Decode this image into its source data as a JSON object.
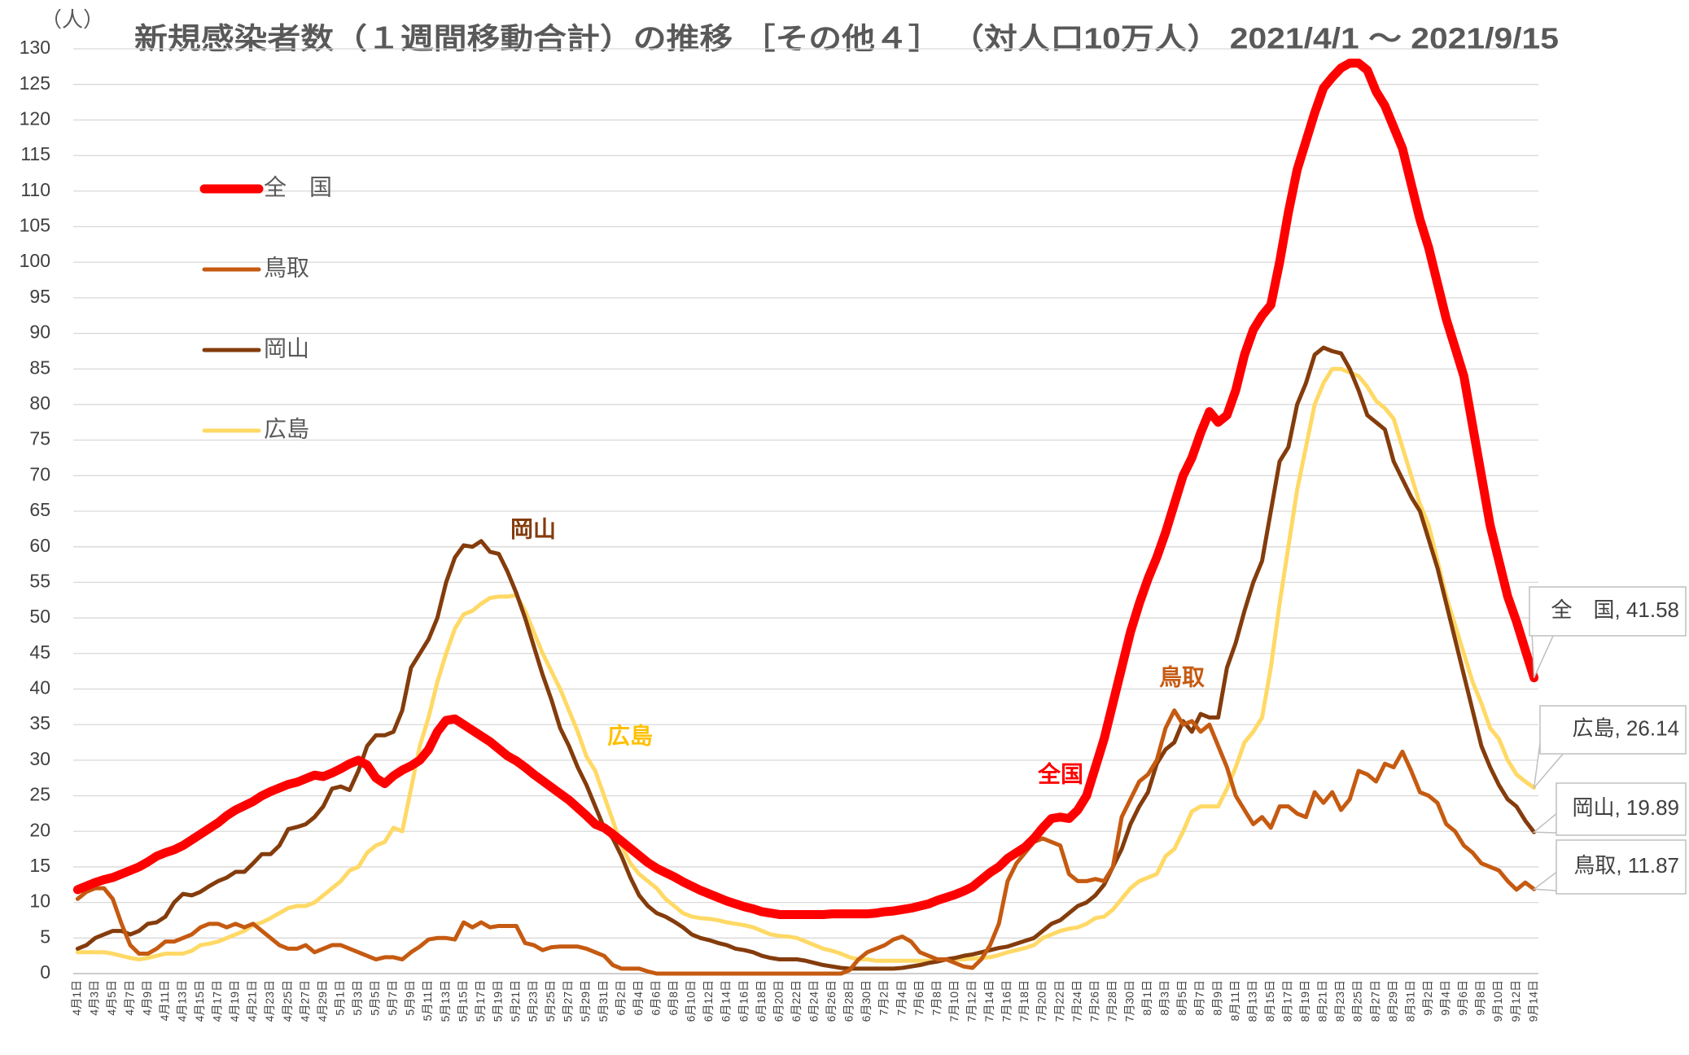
{
  "chart_data": {
    "type": "line",
    "title": "新規感染者数（１週間移動合計）の推移 ［その他４］ （対人口10万人） 2021/4/1 ～ 2021/9/15",
    "ylabel": "（人）",
    "ylim": [
      0,
      130
    ],
    "yticks": [
      0,
      5,
      10,
      15,
      20,
      25,
      30,
      35,
      40,
      45,
      50,
      55,
      60,
      65,
      70,
      75,
      80,
      85,
      90,
      95,
      100,
      105,
      110,
      115,
      120,
      125,
      130
    ],
    "grid": true,
    "categories": [
      "4月1日",
      null,
      "4月3日",
      null,
      "4月5日",
      null,
      "4月7日",
      null,
      "4月9日",
      null,
      "4月11日",
      null,
      "4月13日",
      null,
      "4月15日",
      null,
      "4月17日",
      null,
      "4月19日",
      null,
      "4月21日",
      null,
      "4月23日",
      null,
      "4月25日",
      null,
      "4月27日",
      null,
      "4月29日",
      null,
      "5月1日",
      null,
      "5月3日",
      null,
      "5月5日",
      null,
      "5月7日",
      null,
      "5月9日",
      null,
      "5月11日",
      null,
      "5月13日",
      null,
      "5月15日",
      null,
      "5月17日",
      null,
      "5月19日",
      null,
      "5月21日",
      null,
      "5月23日",
      null,
      "5月25日",
      null,
      "5月27日",
      null,
      "5月29日",
      null,
      "5月31日",
      null,
      "6月2日",
      null,
      "6月4日",
      null,
      "6月6日",
      null,
      "6月8日",
      null,
      "6月10日",
      null,
      "6月12日",
      null,
      "6月14日",
      null,
      "6月16日",
      null,
      "6月18日",
      null,
      "6月20日",
      null,
      "6月22日",
      null,
      "6月24日",
      null,
      "6月26日",
      null,
      "6月28日",
      null,
      "6月30日",
      null,
      "7月2日",
      null,
      "7月4日",
      null,
      "7月6日",
      null,
      "7月8日",
      null,
      "7月10日",
      null,
      "7月12日",
      null,
      "7月14日",
      null,
      "7月16日",
      null,
      "7月18日",
      null,
      "7月20日",
      null,
      "7月22日",
      null,
      "7月24日",
      null,
      "7月26日",
      null,
      "7月28日",
      null,
      "7月30日",
      null,
      "8月1日",
      null,
      "8月3日",
      null,
      "8月5日",
      null,
      "8月7日",
      null,
      "8月9日",
      null,
      "8月11日",
      null,
      "8月13日",
      null,
      "8月15日",
      null,
      "8月17日",
      null,
      "8月19日",
      null,
      "8月21日",
      null,
      "8月23日",
      null,
      "8月25日",
      null,
      "8月27日",
      null,
      "8月29日",
      null,
      "8月31日",
      null,
      "9月2日",
      null,
      "9月4日",
      null,
      "9月6日",
      null,
      "9月8日",
      null,
      "9月10日",
      null,
      "9月12日",
      null,
      "9月14日"
    ],
    "series": [
      {
        "name": "全　国",
        "color": "#ff0000",
        "width": 11,
        "end_label": "全　国, 41.58",
        "values": [
          11.8,
          12.3,
          12.8,
          13.2,
          13.5,
          14.0,
          14.5,
          15.0,
          15.7,
          16.5,
          17.0,
          17.4,
          18.0,
          18.8,
          19.6,
          20.4,
          21.2,
          22.2,
          23.0,
          23.6,
          24.2,
          25.0,
          25.6,
          26.1,
          26.6,
          26.9,
          27.4,
          27.9,
          27.7,
          28.2,
          28.8,
          29.5,
          30.0,
          29.3,
          27.5,
          26.7,
          27.8,
          28.6,
          29.2,
          30.0,
          31.5,
          34.0,
          35.6,
          35.8,
          35.0,
          34.2,
          33.4,
          32.6,
          31.6,
          30.6,
          29.9,
          29.0,
          28.0,
          27.1,
          26.2,
          25.3,
          24.4,
          23.3,
          22.2,
          21.0,
          20.5,
          19.6,
          18.6,
          17.6,
          16.6,
          15.6,
          14.8,
          14.2,
          13.6,
          12.9,
          12.3,
          11.7,
          11.2,
          10.7,
          10.2,
          9.8,
          9.4,
          9.1,
          8.7,
          8.5,
          8.3,
          8.3,
          8.3,
          8.3,
          8.3,
          8.3,
          8.4,
          8.4,
          8.4,
          8.4,
          8.4,
          8.5,
          8.7,
          8.8,
          9.0,
          9.2,
          9.5,
          9.8,
          10.3,
          10.7,
          11.1,
          11.6,
          12.2,
          13.2,
          14.2,
          15.0,
          16.2,
          17.0,
          17.8,
          19.0,
          20.5,
          21.8,
          22.0,
          21.8,
          23.0,
          25.0,
          29.0,
          33.0,
          38.0,
          43.0,
          48.0,
          52.0,
          55.5,
          58.5,
          62,
          66,
          70,
          72.5,
          76,
          79,
          77.5,
          78.5,
          82,
          87,
          90.5,
          92.5,
          94,
          100,
          107,
          113,
          117,
          121,
          124.5,
          126,
          127.3,
          128,
          128,
          127,
          124,
          122,
          119,
          116,
          111,
          106,
          102,
          97,
          92,
          88,
          84,
          77,
          70,
          63,
          58,
          53,
          49.5,
          45.5,
          41.58
        ]
      },
      {
        "name": "鳥取",
        "color": "#c55a11",
        "width": 5,
        "end_label": "鳥取, 11.87",
        "values": [
          10.5,
          11.5,
          12,
          12,
          10.5,
          7,
          4,
          2.8,
          2.8,
          3.5,
          4.5,
          4.5,
          5,
          5.5,
          6.5,
          7,
          7,
          6.5,
          7,
          6.5,
          7,
          6,
          5,
          4,
          3.5,
          3.5,
          4,
          3,
          3.5,
          4,
          4,
          3.5,
          3,
          2.5,
          2,
          2.3,
          2.3,
          2,
          3,
          3.8,
          4.8,
          5,
          5,
          4.8,
          7.2,
          6.5,
          7.2,
          6.5,
          6.7,
          6.7,
          6.7,
          4.3,
          4,
          3.3,
          3.7,
          3.8,
          3.8,
          3.8,
          3.5,
          3,
          2.5,
          1.2,
          0.7,
          0.7,
          0.7,
          0.3,
          0,
          0,
          0,
          0,
          0,
          0,
          0,
          0,
          0,
          0,
          0,
          0,
          0,
          0,
          0,
          0,
          0,
          0,
          0,
          0,
          0,
          0,
          0.5,
          2,
          3,
          3.5,
          4,
          4.8,
          5.2,
          4.5,
          3,
          2.5,
          2,
          2,
          1.5,
          1,
          0.8,
          2,
          4,
          7,
          13,
          15.5,
          17,
          18.5,
          19,
          18.5,
          18,
          14,
          13,
          13,
          13.3,
          13,
          15,
          22,
          24.5,
          27,
          28,
          30,
          34.5,
          37,
          35,
          35.5,
          34,
          35,
          32,
          29,
          25,
          23,
          21,
          22,
          20.5,
          23.5,
          23.5,
          22.5,
          22,
          25.5,
          24,
          25.5,
          23,
          24.5,
          28.5,
          28,
          27,
          29.5,
          29,
          31.2,
          28.5,
          25.5,
          25,
          24,
          21,
          20,
          18,
          17,
          15.5,
          15,
          14.5,
          13,
          11.8,
          12.8,
          11.87
        ]
      },
      {
        "name": "岡山",
        "color": "#843c0c",
        "width": 5,
        "end_label": "岡山, 19.89",
        "values": [
          3.5,
          4,
          5,
          5.5,
          6,
          6,
          5.5,
          6,
          7,
          7.2,
          8,
          10,
          11.2,
          11,
          11.5,
          12.3,
          13,
          13.5,
          14.3,
          14.3,
          15.5,
          16.8,
          16.8,
          18,
          20.3,
          20.6,
          21,
          22,
          23.5,
          26,
          26.3,
          25.8,
          28.5,
          32,
          33.5,
          33.5,
          34,
          37,
          43,
          45,
          47,
          50,
          55,
          58.5,
          60.2,
          60,
          60.8,
          59.3,
          59,
          56.5,
          53.5,
          50,
          46,
          42,
          38.5,
          34.5,
          32,
          29,
          26.5,
          23.5,
          20.5,
          19,
          16.5,
          13.5,
          11,
          9.5,
          8.5,
          8,
          7.3,
          6.5,
          5.5,
          5,
          4.7,
          4.3,
          4,
          3.5,
          3.3,
          3,
          2.5,
          2.2,
          2,
          2,
          2,
          1.8,
          1.5,
          1.2,
          1,
          0.8,
          0.7,
          0.7,
          0.7,
          0.7,
          0.7,
          0.7,
          0.8,
          1,
          1.2,
          1.5,
          1.7,
          2,
          2.2,
          2.5,
          2.7,
          3,
          3.3,
          3.6,
          3.8,
          4.2,
          4.6,
          5,
          6,
          7,
          7.5,
          8.5,
          9.5,
          10,
          11,
          12.5,
          15,
          17.5,
          21,
          23.5,
          25.5,
          29.5,
          31.5,
          32.5,
          35.5,
          34,
          36.5,
          36,
          36,
          43,
          46.5,
          51,
          55,
          58,
          65,
          72,
          74,
          80,
          83,
          87,
          88,
          87.5,
          87.2,
          85,
          82,
          78.5,
          77.5,
          76.5,
          72,
          69.5,
          67,
          65,
          61,
          57,
          52,
          47,
          42,
          37,
          32,
          29,
          26.5,
          24.5,
          23.5,
          21.5,
          19.89
        ]
      },
      {
        "name": "広島",
        "color": "#ffd966",
        "width": 5,
        "end_label": "広島, 26.14",
        "values": [
          3,
          3,
          3,
          3,
          2.8,
          2.5,
          2.2,
          2,
          2.2,
          2.5,
          2.8,
          2.8,
          2.8,
          3.2,
          4,
          4.2,
          4.5,
          5,
          5.5,
          6,
          6.8,
          7.2,
          7.8,
          8.5,
          9.2,
          9.5,
          9.5,
          10,
          11,
          12,
          13,
          14.5,
          15,
          17,
          18,
          18.5,
          20.5,
          20,
          26,
          32,
          36,
          41,
          45,
          48.5,
          50.5,
          51,
          52,
          52.8,
          53,
          53,
          53.2,
          51,
          48,
          45,
          42.5,
          40,
          37,
          34,
          30.5,
          28.5,
          25,
          21.5,
          18,
          15.5,
          14,
          13,
          12,
          10.5,
          9.5,
          8.5,
          8,
          7.8,
          7.7,
          7.5,
          7.2,
          7,
          6.8,
          6.5,
          6,
          5.5,
          5.3,
          5.2,
          5,
          4.5,
          4,
          3.5,
          3.2,
          2.8,
          2.3,
          2,
          2,
          1.8,
          1.8,
          1.8,
          1.8,
          1.8,
          1.8,
          1.8,
          1.9,
          2,
          2,
          2,
          2.1,
          2.2,
          2.3,
          2.6,
          3,
          3.3,
          3.6,
          4,
          5,
          5.5,
          6,
          6.3,
          6.5,
          7,
          7.8,
          8,
          9,
          10.5,
          12,
          13,
          13.5,
          14,
          16.5,
          17.5,
          20,
          22.8,
          23.5,
          23.5,
          23.5,
          26,
          29,
          32.5,
          34,
          36,
          43,
          52,
          60,
          68,
          74,
          80,
          83,
          85,
          85,
          84.5,
          84,
          82.5,
          80.5,
          79.5,
          78,
          74,
          70,
          66,
          63,
          58,
          53,
          49,
          45,
          41,
          38,
          34.5,
          33,
          30,
          28,
          27,
          26.14
        ]
      }
    ],
    "annotations": [
      {
        "text": "岡山",
        "color": "#843c0c"
      },
      {
        "text": "広島",
        "color": "#ffc000"
      },
      {
        "text": "鳥取",
        "color": "#c55a11"
      },
      {
        "text": "全国",
        "color": "#ff0000"
      }
    ]
  }
}
